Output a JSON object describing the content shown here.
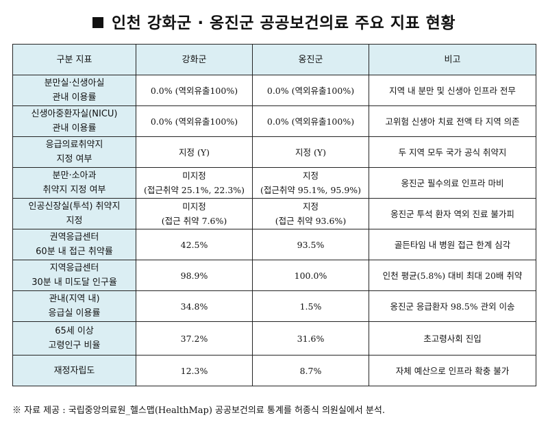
{
  "title": "인천 강화군 · 옹진군 공공보건의료 주요 지표 현황",
  "table": {
    "headers": [
      "구분 지표",
      "강화군",
      "옹진군",
      "비고"
    ],
    "rows": [
      {
        "label": [
          "분만실·신생아실",
          "관내 이용률"
        ],
        "ganghwa": [
          "0.0% (역외유출100%)"
        ],
        "ongjin": [
          "0.0% (역외유출100%)"
        ],
        "note": "지역 내 분만 및 신생아 인프라 전무"
      },
      {
        "label": [
          "신생아중환자실(NICU)",
          "관내 이용률"
        ],
        "ganghwa": [
          "0.0% (역외유출100%)"
        ],
        "ongjin": [
          "0.0% (역외유출100%)"
        ],
        "note": "고위험 신생아 치료 전액 타 지역 의존"
      },
      {
        "label": [
          "응급의료취약지",
          "지정 여부"
        ],
        "ganghwa": [
          "지정 (Y)"
        ],
        "ongjin": [
          "지정 (Y)"
        ],
        "note": "두 지역 모두 국가 공식 취약지"
      },
      {
        "label": [
          "분만·소아과",
          "취약지 지정 여부"
        ],
        "ganghwa": [
          "미지정",
          "(접근취약 25.1%, 22.3%)"
        ],
        "ongjin": [
          "지정",
          "(접근취약 95.1%, 95.9%)"
        ],
        "note": "옹진군 필수의료 인프라 마비"
      },
      {
        "label": [
          "인공신장실(투석) 취약지",
          "지정"
        ],
        "ganghwa": [
          "미지정",
          "(접근 취약 7.6%)"
        ],
        "ongjin": [
          "지정",
          "(접근 취약 93.6%)"
        ],
        "note": "옹진군 투석 환자 역외 진료 불가피"
      },
      {
        "label": [
          "권역응급센터",
          "60분 내 접근 취약률"
        ],
        "ganghwa": [
          "42.5%"
        ],
        "ongjin": [
          "93.5%"
        ],
        "note": "골든타임 내 병원 접근 한계 심각"
      },
      {
        "label": [
          "지역응급센터",
          "30분 내 미도달 인구율"
        ],
        "ganghwa": [
          "98.9%"
        ],
        "ongjin": [
          "100.0%"
        ],
        "note": "인천 평균(5.8%) 대비 최대 20배 취약"
      },
      {
        "label": [
          "관내(지역 내)",
          "응급실 이용률"
        ],
        "ganghwa": [
          "34.8%"
        ],
        "ongjin": [
          "1.5%"
        ],
        "note": "옹진군 응급환자 98.5% 관외 이송"
      },
      {
        "label": [
          "65세 이상",
          "고령인구 비율"
        ],
        "ganghwa": [
          "37.2%"
        ],
        "ongjin": [
          "31.6%"
        ],
        "note": "초고령사회 진입"
      },
      {
        "label": [
          "재정자립도"
        ],
        "ganghwa": [
          "12.3%"
        ],
        "ongjin": [
          "8.7%"
        ],
        "note": "자체 예산으로 인프라 확충 불가"
      }
    ]
  },
  "source_note": "※ 자료 제공 : 국립중앙의료원_헬스맵(HealthMap) 공공보건의료 통계를 허종식 의원실에서 분석."
}
